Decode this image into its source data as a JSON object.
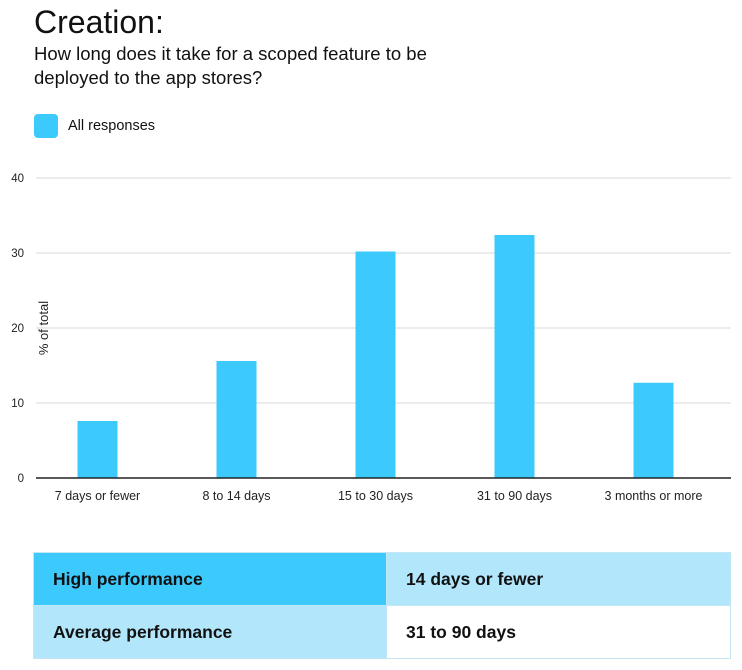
{
  "title": "Creation:",
  "subtitle": "How long does it take for a scoped feature to be deployed to the app stores?",
  "legend": {
    "label": "All responses",
    "color": "#3ccafc"
  },
  "chart_data": {
    "type": "bar",
    "categories": [
      "7 days or fewer",
      "8 to 14 days",
      "15 to 30 days",
      "31 to 90 days",
      "3 months or more"
    ],
    "series": [
      {
        "name": "All responses",
        "values": [
          7.6,
          15.6,
          30.2,
          32.4,
          12.7
        ]
      }
    ],
    "ylabel": "% of total",
    "xlabel": "",
    "ylim": [
      0,
      40
    ],
    "yticks": [
      0,
      10,
      20,
      30,
      40
    ],
    "grid": true,
    "legend_position": "top-left",
    "bar_color": "#3ccafc"
  },
  "performance_table": {
    "rows": [
      {
        "label": "High performance",
        "value": "14 days or fewer"
      },
      {
        "label": "Average performance",
        "value": "31 to 90 days"
      }
    ]
  }
}
